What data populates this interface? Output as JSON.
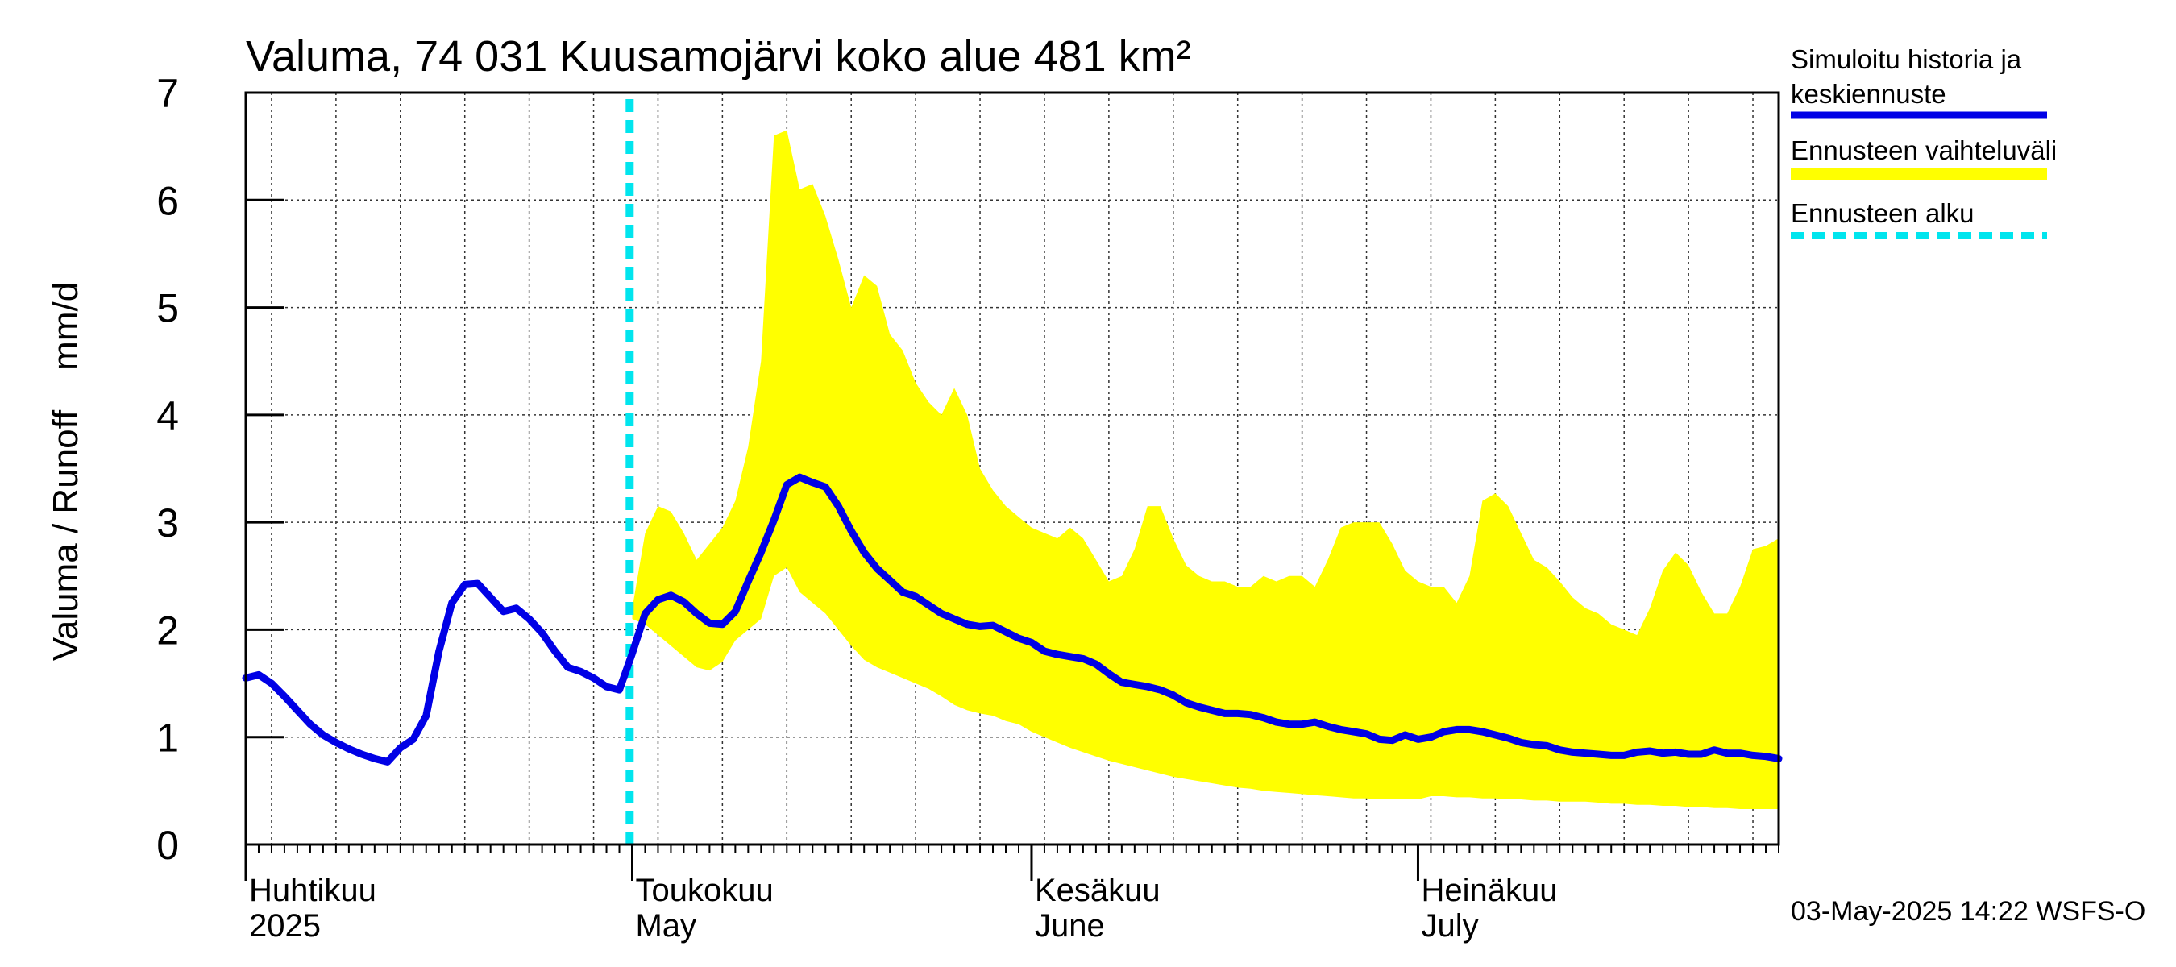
{
  "chart_data": {
    "type": "area",
    "title": "Valuma, 74 031 Kuusamojärvi koko alue 481 km²",
    "ylabel": "Valuma / Runoff    mm/d",
    "ylim": [
      0,
      7
    ],
    "yticks": [
      0,
      1,
      2,
      3,
      4,
      5,
      6,
      7
    ],
    "x_range_day": [
      0,
      119
    ],
    "grid": true,
    "month_labels": [
      {
        "day": 0,
        "line1": "Huhtikuu",
        "line2": "2025"
      },
      {
        "day": 30,
        "line1": "Toukokuu",
        "line2": "May"
      },
      {
        "day": 61,
        "line1": "Kesäkuu",
        "line2": "June"
      },
      {
        "day": 91,
        "line1": "Heinäkuu",
        "line2": "July"
      }
    ],
    "forecast_start_day": 29.8,
    "legend": {
      "position": "right",
      "items": [
        {
          "line1": "Simuloitu historia ja",
          "line2": "keskiennuste",
          "color": "#0000e6",
          "style": "solid"
        },
        {
          "line1": "Ennusteen vaihteluväli",
          "line2": "",
          "color": "#ffff00",
          "style": "band"
        },
        {
          "line1": "Ennusteen alku",
          "line2": "",
          "color": "#00e5ee",
          "style": "dashed"
        }
      ]
    },
    "footer": "03-May-2025 14:22 WSFS-O",
    "series": [
      {
        "name": "Simuloitu historia ja keskiennuste",
        "x": [
          0,
          1,
          2,
          3,
          4,
          5,
          6,
          7,
          8,
          9,
          10,
          11,
          12,
          13,
          14,
          15,
          16,
          17,
          18,
          19,
          20,
          21,
          22,
          23,
          24,
          25,
          26,
          27,
          28,
          29,
          30,
          31,
          32,
          33,
          34,
          35,
          36,
          37,
          38,
          39,
          40,
          41,
          42,
          43,
          44,
          45,
          46,
          47,
          48,
          49,
          50,
          51,
          52,
          53,
          54,
          55,
          56,
          57,
          58,
          59,
          60,
          61,
          62,
          63,
          64,
          65,
          66,
          67,
          68,
          69,
          70,
          71,
          72,
          73,
          74,
          75,
          76,
          77,
          78,
          79,
          80,
          81,
          82,
          83,
          84,
          85,
          86,
          87,
          88,
          89,
          90,
          91,
          92,
          93,
          94,
          95,
          96,
          97,
          98,
          99,
          100,
          101,
          102,
          103,
          104,
          105,
          106,
          107,
          108,
          109,
          110,
          111,
          112,
          113,
          114,
          115,
          116,
          117,
          118,
          119
        ],
        "y": [
          1.55,
          1.58,
          1.5,
          1.38,
          1.25,
          1.12,
          1.02,
          0.95,
          0.89,
          0.84,
          0.8,
          0.77,
          0.9,
          0.98,
          1.2,
          1.8,
          2.25,
          2.42,
          2.43,
          2.3,
          2.17,
          2.2,
          2.1,
          1.97,
          1.8,
          1.65,
          1.61,
          1.55,
          1.47,
          1.44,
          1.78,
          2.15,
          2.28,
          2.32,
          2.26,
          2.15,
          2.06,
          2.05,
          2.17,
          2.45,
          2.72,
          3.02,
          3.35,
          3.42,
          3.37,
          3.33,
          3.15,
          2.92,
          2.72,
          2.57,
          2.46,
          2.35,
          2.31,
          2.23,
          2.15,
          2.1,
          2.05,
          2.03,
          2.04,
          1.98,
          1.92,
          1.88,
          1.8,
          1.77,
          1.75,
          1.73,
          1.68,
          1.59,
          1.51,
          1.49,
          1.47,
          1.44,
          1.39,
          1.32,
          1.28,
          1.25,
          1.22,
          1.22,
          1.21,
          1.18,
          1.14,
          1.12,
          1.12,
          1.14,
          1.1,
          1.07,
          1.05,
          1.03,
          0.98,
          0.97,
          1.02,
          0.98,
          1.0,
          1.05,
          1.07,
          1.07,
          1.05,
          1.02,
          0.99,
          0.95,
          0.93,
          0.92,
          0.88,
          0.86,
          0.85,
          0.84,
          0.83,
          0.83,
          0.86,
          0.87,
          0.85,
          0.86,
          0.84,
          0.84,
          0.88,
          0.85,
          0.85,
          0.83,
          0.82,
          0.8
        ]
      },
      {
        "name": "Ennusteen vaihteluväli (upper)",
        "x": [
          30,
          31,
          32,
          33,
          34,
          35,
          36,
          37,
          38,
          39,
          40,
          41,
          42,
          43,
          44,
          45,
          46,
          47,
          48,
          49,
          50,
          51,
          52,
          53,
          54,
          55,
          56,
          57,
          58,
          59,
          60,
          61,
          62,
          63,
          64,
          65,
          66,
          67,
          68,
          69,
          70,
          71,
          72,
          73,
          74,
          75,
          76,
          77,
          78,
          79,
          80,
          81,
          82,
          83,
          84,
          85,
          86,
          87,
          88,
          89,
          90,
          91,
          92,
          93,
          94,
          95,
          96,
          97,
          98,
          99,
          100,
          101,
          102,
          103,
          104,
          105,
          106,
          107,
          108,
          109,
          110,
          111,
          112,
          113,
          114,
          115,
          116,
          117,
          118,
          119
        ],
        "y": [
          2.2,
          2.9,
          3.15,
          3.1,
          2.9,
          2.65,
          2.8,
          2.95,
          3.2,
          3.7,
          4.5,
          6.6,
          6.65,
          6.1,
          6.15,
          5.85,
          5.45,
          5.0,
          5.3,
          5.2,
          4.75,
          4.6,
          4.3,
          4.12,
          4.0,
          4.25,
          4.0,
          3.5,
          3.3,
          3.15,
          3.05,
          2.95,
          2.9,
          2.85,
          2.95,
          2.85,
          2.65,
          2.45,
          2.5,
          2.75,
          3.15,
          3.15,
          2.85,
          2.6,
          2.5,
          2.45,
          2.45,
          2.4,
          2.4,
          2.5,
          2.45,
          2.5,
          2.5,
          2.4,
          2.65,
          2.95,
          3.0,
          3.0,
          3.0,
          2.8,
          2.55,
          2.45,
          2.4,
          2.4,
          2.25,
          2.5,
          3.2,
          3.27,
          3.15,
          2.9,
          2.65,
          2.58,
          2.45,
          2.3,
          2.2,
          2.15,
          2.05,
          2.0,
          1.95,
          2.2,
          2.55,
          2.72,
          2.6,
          2.35,
          2.15,
          2.15,
          2.4,
          2.75,
          2.78,
          2.85
        ]
      },
      {
        "name": "Ennusteen vaihteluväli (lower)",
        "x": [
          30,
          31,
          32,
          33,
          34,
          35,
          36,
          37,
          38,
          39,
          40,
          41,
          42,
          43,
          44,
          45,
          46,
          47,
          48,
          49,
          50,
          51,
          52,
          53,
          54,
          55,
          56,
          57,
          58,
          59,
          60,
          61,
          62,
          63,
          64,
          65,
          66,
          67,
          68,
          69,
          70,
          71,
          72,
          73,
          74,
          75,
          76,
          77,
          78,
          79,
          80,
          81,
          82,
          83,
          84,
          85,
          86,
          87,
          88,
          89,
          90,
          91,
          92,
          93,
          94,
          95,
          96,
          97,
          98,
          99,
          100,
          101,
          102,
          103,
          104,
          105,
          106,
          107,
          108,
          109,
          110,
          111,
          112,
          113,
          114,
          115,
          116,
          117,
          118,
          119
        ],
        "y": [
          2.1,
          2.05,
          1.95,
          1.85,
          1.75,
          1.65,
          1.62,
          1.7,
          1.9,
          2.0,
          2.1,
          2.5,
          2.58,
          2.35,
          2.25,
          2.15,
          2.0,
          1.85,
          1.72,
          1.65,
          1.6,
          1.55,
          1.5,
          1.45,
          1.38,
          1.3,
          1.25,
          1.22,
          1.2,
          1.15,
          1.12,
          1.05,
          1.0,
          0.95,
          0.9,
          0.86,
          0.82,
          0.78,
          0.75,
          0.72,
          0.69,
          0.66,
          0.63,
          0.61,
          0.59,
          0.57,
          0.55,
          0.53,
          0.52,
          0.5,
          0.49,
          0.48,
          0.47,
          0.46,
          0.45,
          0.44,
          0.43,
          0.43,
          0.42,
          0.42,
          0.42,
          0.42,
          0.45,
          0.45,
          0.44,
          0.44,
          0.43,
          0.43,
          0.42,
          0.42,
          0.41,
          0.41,
          0.4,
          0.4,
          0.4,
          0.39,
          0.38,
          0.38,
          0.37,
          0.37,
          0.36,
          0.36,
          0.35,
          0.35,
          0.34,
          0.34,
          0.33,
          0.33,
          0.33,
          0.33
        ]
      }
    ]
  }
}
